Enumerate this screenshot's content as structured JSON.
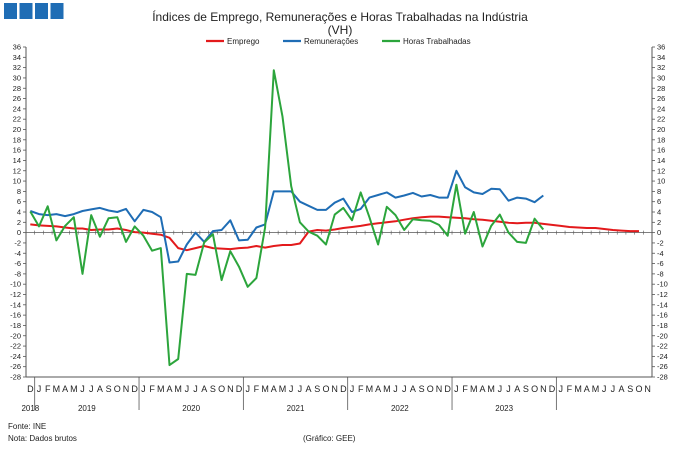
{
  "chart_data": {
    "type": "line",
    "title": "Índices de Emprego, Remunerações e Horas Trabalhadas na Indústria",
    "subtitle": "(VH)",
    "ylim": [
      -28,
      36
    ],
    "y_tick_step": 2,
    "grid": false,
    "legend_position": "top",
    "month_labels": [
      "D",
      "J",
      "F",
      "M",
      "A",
      "M",
      "J",
      "J",
      "A",
      "S",
      "O",
      "N",
      "D",
      "J",
      "F",
      "M",
      "A",
      "M",
      "J",
      "J",
      "A",
      "S",
      "O",
      "N",
      "D",
      "J",
      "F",
      "M",
      "A",
      "M",
      "J",
      "J",
      "A",
      "S",
      "O",
      "N",
      "D",
      "J",
      "F",
      "M",
      "A",
      "M",
      "J",
      "J",
      "A",
      "S",
      "O",
      "N",
      "D",
      "J",
      "F",
      "M",
      "A",
      "M",
      "J",
      "J",
      "A",
      "S",
      "O",
      "N",
      "D",
      "J",
      "F",
      "M",
      "A",
      "M",
      "J",
      "J",
      "A",
      "S",
      "O",
      "N"
    ],
    "years": [
      {
        "label": "2018",
        "index": 0
      },
      {
        "label": "2019",
        "index": 6.5
      },
      {
        "label": "2020",
        "index": 18.5
      },
      {
        "label": "2021",
        "index": 30.5
      },
      {
        "label": "2022",
        "index": 42.5
      },
      {
        "label": "2023",
        "index": 54.5
      }
    ],
    "series": [
      {
        "name": "Emprego",
        "color": "#e31a1c",
        "values": [
          1.6,
          1.4,
          1.3,
          1.2,
          1.0,
          0.8,
          0.8,
          0.5,
          0.6,
          0.6,
          0.8,
          0.5,
          0.1,
          0.0,
          -0.2,
          -0.4,
          -1.0,
          -3.0,
          -3.4,
          -3.0,
          -2.6,
          -3.0,
          -3.1,
          -3.2,
          -3.0,
          -2.9,
          -2.6,
          -2.9,
          -2.6,
          -2.4,
          -2.4,
          -2.1,
          0.2,
          0.5,
          0.4,
          0.6,
          0.9,
          1.1,
          1.3,
          1.6,
          1.8,
          2.0,
          2.2,
          2.5,
          2.8,
          3.0,
          3.1,
          3.1,
          3.0,
          2.9,
          2.8,
          2.6,
          2.5,
          2.3,
          2.1,
          1.9,
          1.8,
          1.9,
          1.9,
          1.7,
          1.5,
          1.3,
          1.1,
          1.0,
          0.9,
          0.9,
          0.7,
          0.5,
          0.4,
          0.3,
          0.3
        ]
      },
      {
        "name": "Remunerações",
        "color": "#1f6db5",
        "values": [
          4.2,
          3.6,
          3.4,
          3.6,
          3.2,
          3.6,
          4.2,
          4.5,
          4.8,
          4.3,
          4.0,
          4.6,
          2.2,
          4.4,
          4.0,
          3.0,
          -5.8,
          -5.6,
          -2.3,
          0.0,
          -1.8,
          0.3,
          0.5,
          2.4,
          -1.5,
          -1.4,
          1.0,
          1.6,
          8.0,
          8.0,
          8.0,
          6.0,
          5.2,
          4.4,
          4.4,
          5.8,
          6.6,
          4.0,
          4.6,
          6.8,
          7.3,
          7.8,
          6.8,
          7.2,
          7.7,
          7.0,
          7.3,
          6.8,
          6.8,
          12.0,
          8.8,
          7.8,
          7.5,
          8.5,
          8.4,
          6.2,
          6.8,
          6.6,
          5.9,
          7.2
        ]
      },
      {
        "name": "Horas Trabalhadas",
        "color": "#2ca53c",
        "values": [
          4.1,
          1.2,
          5.1,
          -1.5,
          1.3,
          3.0,
          -8.0,
          3.4,
          -0.8,
          2.8,
          3.0,
          -1.8,
          1.2,
          -0.6,
          -3.5,
          -3.0,
          -25.7,
          -24.5,
          -8.0,
          -8.2,
          -1.9,
          -0.3,
          -9.2,
          -3.6,
          -6.6,
          -10.5,
          -8.8,
          1.0,
          31.5,
          22.5,
          9.0,
          2.0,
          0.2,
          -0.6,
          -2.3,
          3.5,
          4.8,
          2.4,
          7.8,
          3.0,
          -2.3,
          5.0,
          3.4,
          0.5,
          2.6,
          2.4,
          2.3,
          1.5,
          -0.6,
          9.3,
          -0.2,
          4.0,
          -2.7,
          1.3,
          3.5,
          0.0,
          -1.8,
          -2.0,
          2.7,
          0.6
        ]
      }
    ]
  },
  "footer": {
    "source": "Fonte: INE",
    "note": "Nota: Dados brutos",
    "credit": "(Gráfico: GEE)"
  },
  "colors": {
    "logo": "#1f6db5",
    "axis": "#555555"
  }
}
